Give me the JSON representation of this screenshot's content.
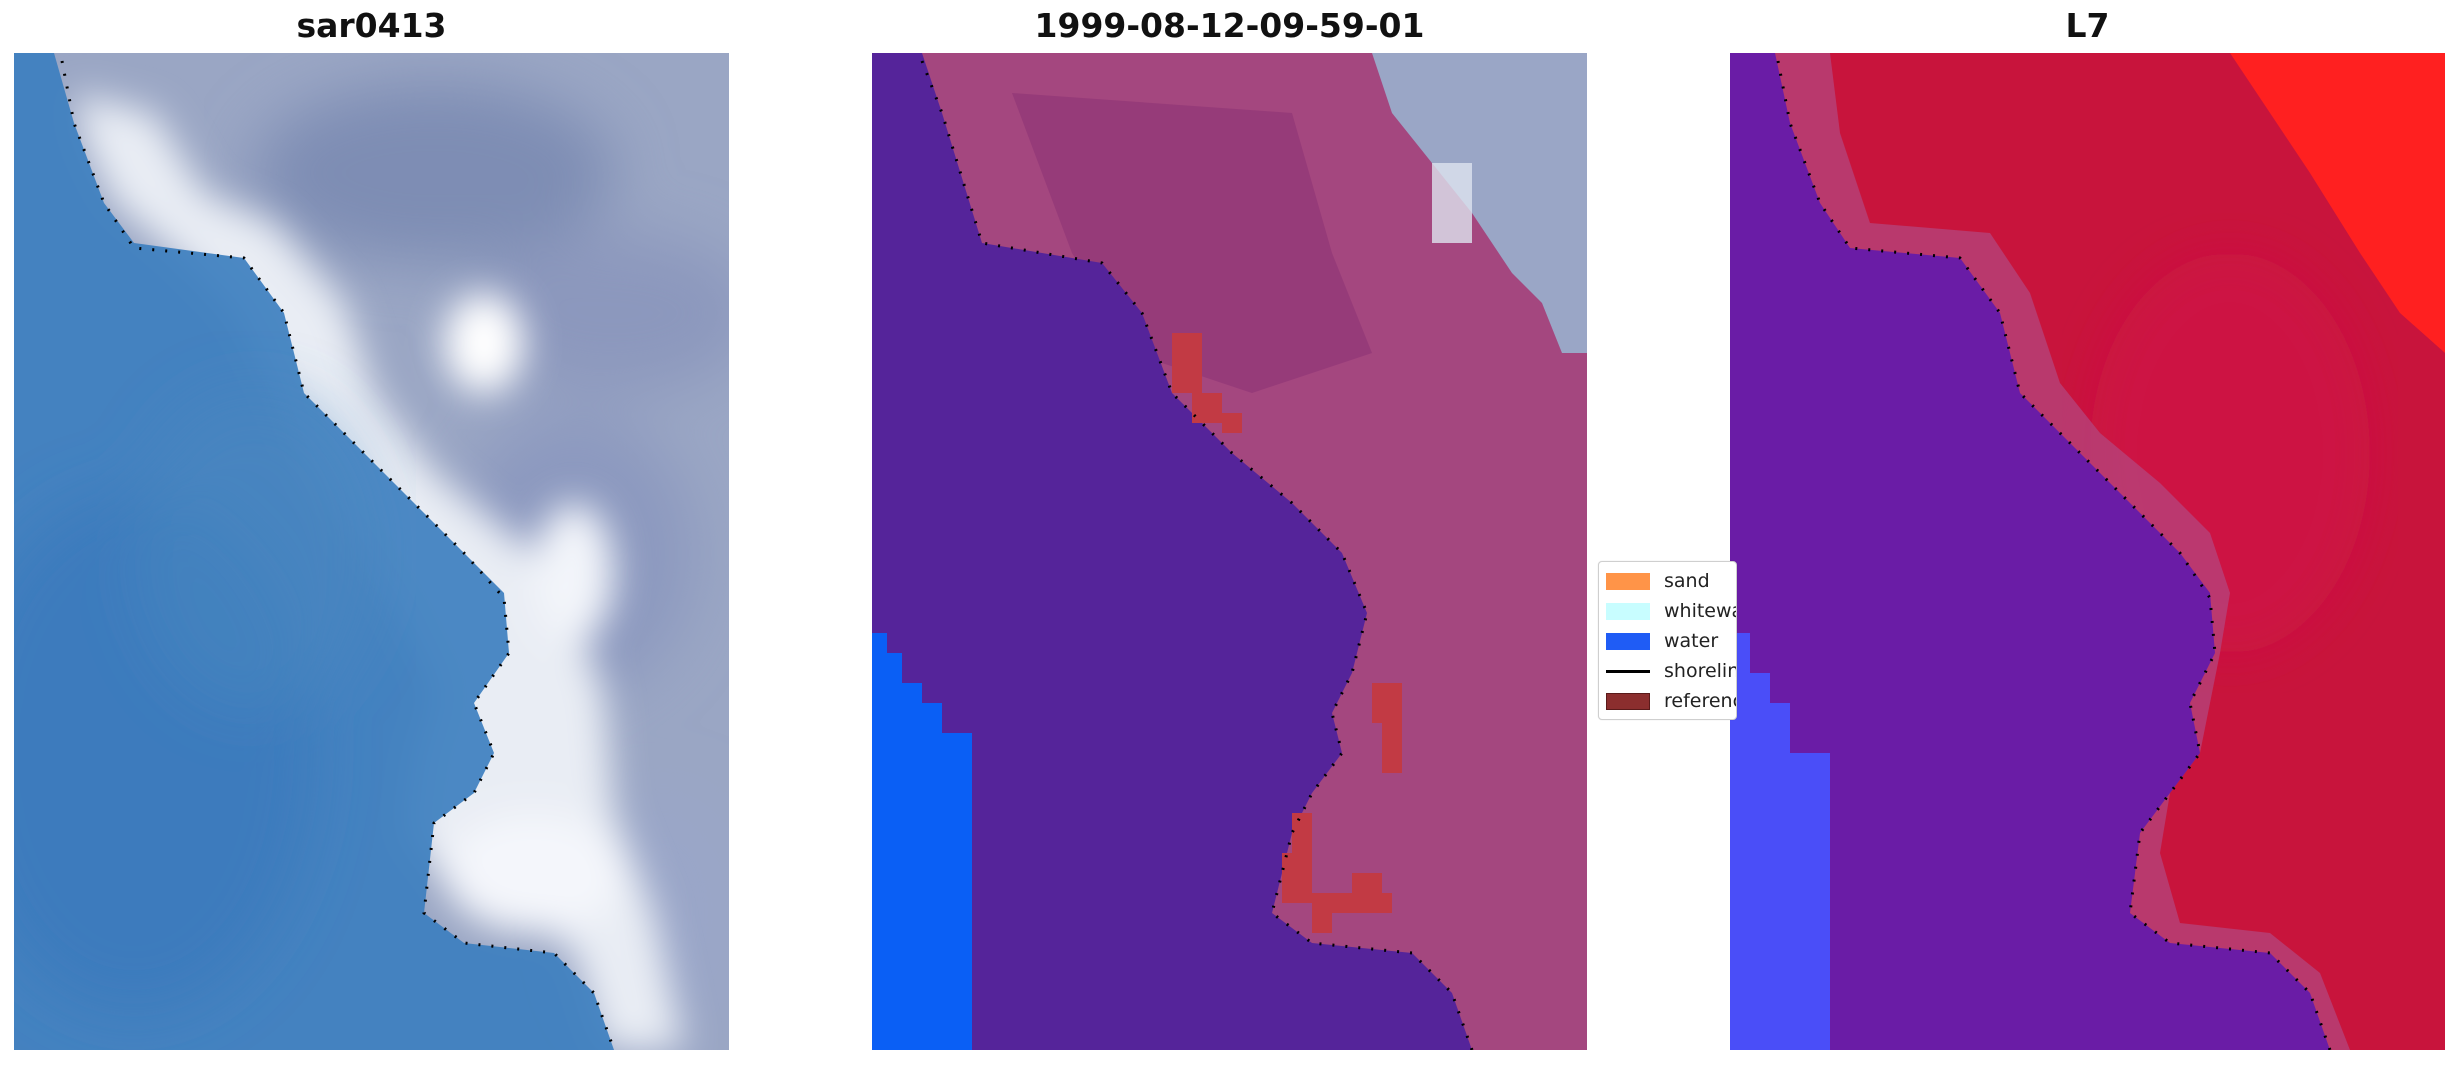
{
  "panels": [
    {
      "title": "sar0413"
    },
    {
      "title": "1999-08-12-09-59-01"
    },
    {
      "title": "L7"
    }
  ],
  "legend": {
    "items": [
      {
        "label": "sand",
        "icon": "sand-swatch-icon",
        "color": "#ff9448"
      },
      {
        "label": "whitewater",
        "icon": "whitewater-swatch-icon",
        "color": "#c8fdff"
      },
      {
        "label": "water",
        "icon": "water-swatch-icon",
        "color": "#1f5cf5"
      },
      {
        "label": "shoreline",
        "icon": "shoreline-line-icon",
        "color": "#000000"
      },
      {
        "label": "reference shoreline",
        "icon": "reference-shoreline-swatch-icon",
        "color": "#8b2e2e"
      }
    ]
  },
  "colors": {
    "rgb_water": "#3d7fbf",
    "rgb_land": "#9aa6c4",
    "rgb_whitewater": "#eef1f6",
    "class_water_zone": "#55249a",
    "class_land": "#a4477f",
    "class_deep_water": "#0a5ff5",
    "class_grey_land": "#9aa6c6",
    "class_reference": "#c23a44",
    "index_water": "#6a1ca6",
    "index_land": "#c8143c",
    "index_bright": "#ff2020",
    "index_blue": "#4a4ef8",
    "shoreline_dots": "#000000"
  }
}
